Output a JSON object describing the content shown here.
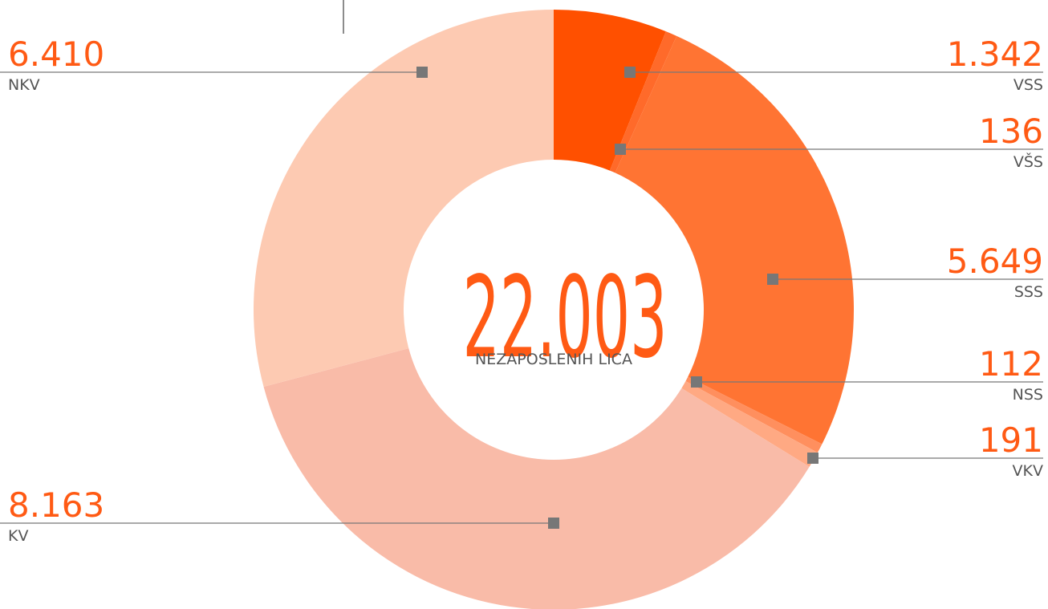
{
  "chart_data": {
    "type": "donut",
    "center_title": "22.003",
    "center_subtitle": "NEZAPOSLENIH LICA",
    "categories": [
      "VSS",
      "VŠS",
      "SSS",
      "NSS",
      "VKV",
      "KV",
      "NKV"
    ],
    "values": [
      1342,
      136,
      5649,
      112,
      191,
      8163,
      6410
    ],
    "value_labels": [
      "1.342",
      "136",
      "5.649",
      "112",
      "191",
      "8.163",
      "6.410"
    ],
    "colors": [
      "#ff5000",
      "#ff6a2a",
      "#ff7433",
      "#ff8f5e",
      "#ffa983",
      "#f9bba8",
      "#fdcab2"
    ]
  }
}
